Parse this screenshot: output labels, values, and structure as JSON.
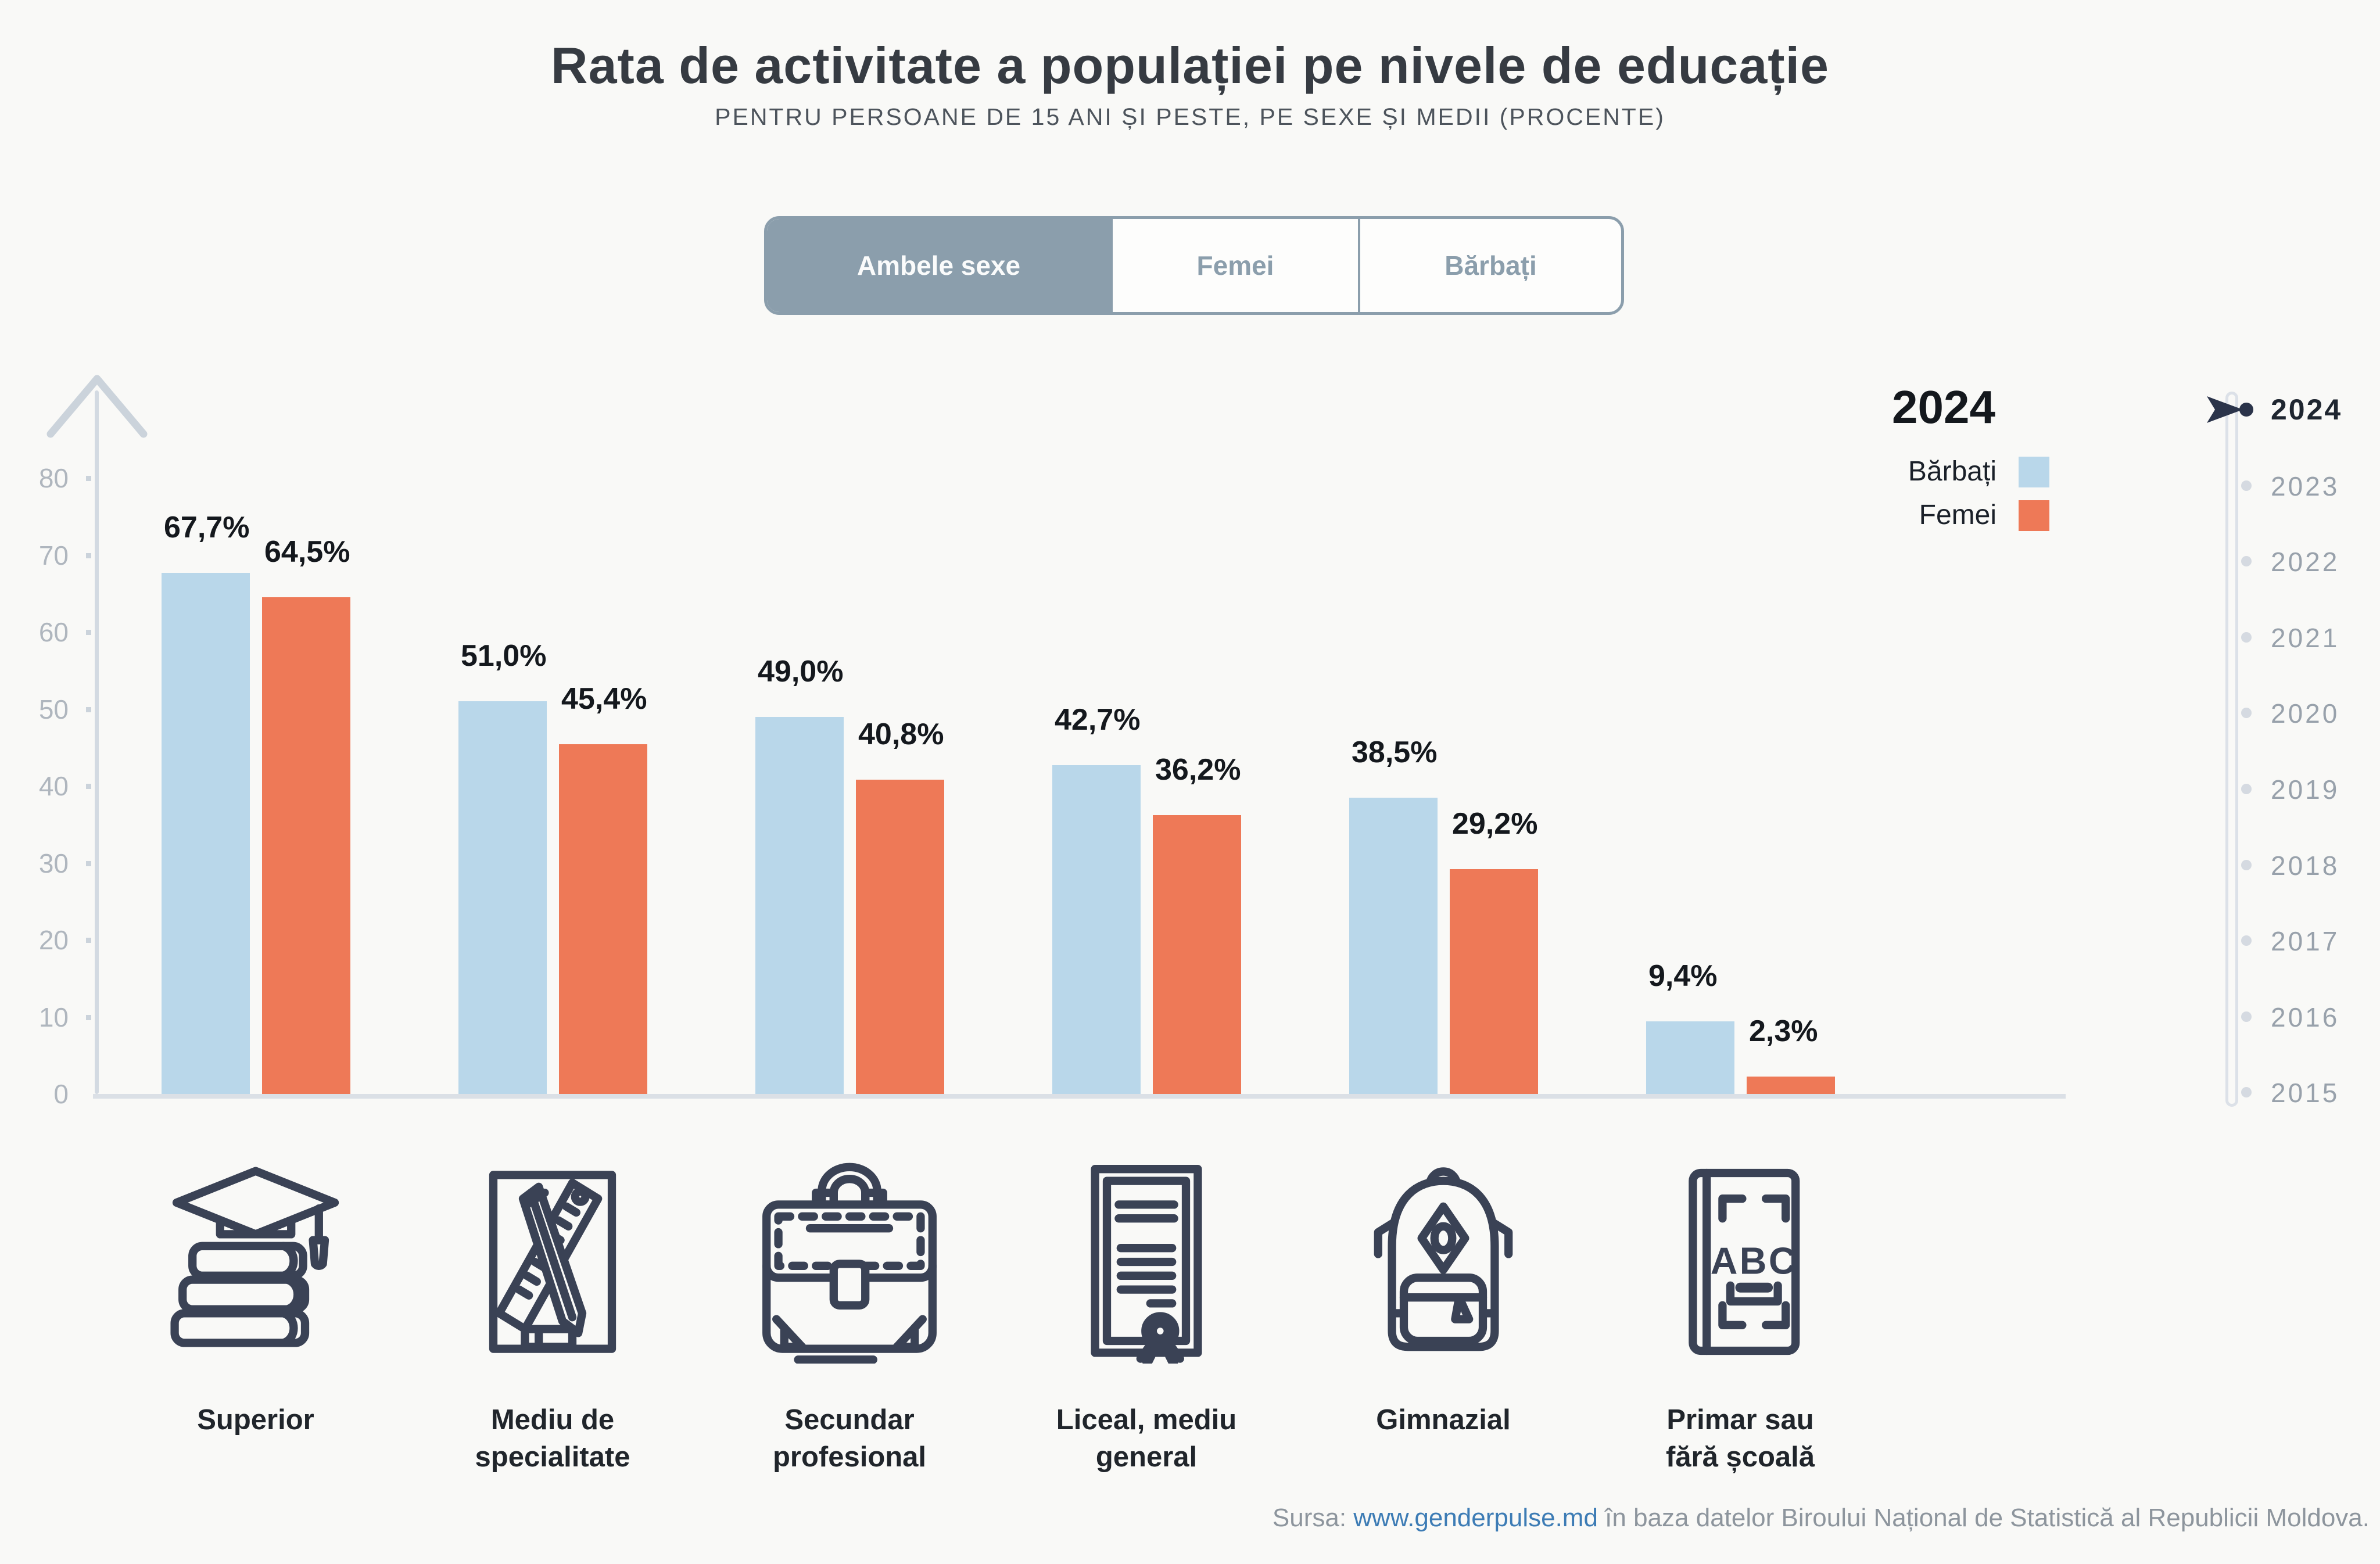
{
  "colors": {
    "background": "#F9F9F7",
    "bar_male": "#B9D7EA",
    "bar_female": "#EE7957",
    "tab_selected": "#8B9EAC",
    "icon_stroke": "#3A4255",
    "axis": "#D3DAE2",
    "timeline_active": "#2B344A",
    "link": "#3D7CB5"
  },
  "header": {
    "title": "Rata de activitate a populației pe nivele de educație",
    "subtitle": "PENTRU PERSOANE DE 15 ANI ȘI PESTE, PE SEXE ȘI MEDII (PROCENTE)"
  },
  "tabs": {
    "options": [
      {
        "label": "Ambele sexe",
        "selected": true
      },
      {
        "label": "Femei",
        "selected": false
      },
      {
        "label": "Bărbați",
        "selected": false
      }
    ]
  },
  "legend": {
    "year": "2024",
    "items": [
      {
        "label": "Bărbați",
        "color": "#B9D7EA"
      },
      {
        "label": "Femei",
        "color": "#EE7957"
      }
    ]
  },
  "timeline": {
    "active_year": "2024",
    "years": [
      "2024",
      "2023",
      "2022",
      "2021",
      "2020",
      "2019",
      "2018",
      "2017",
      "2016",
      "2015"
    ]
  },
  "chart_data": {
    "type": "bar",
    "title": "Rata de activitate a populației pe nivele de educație",
    "subtitle": "Pentru persoane de 15 ani și peste, pe sexe și medii (procente)",
    "unit": "%",
    "year": "2024",
    "categories": [
      "Superior",
      "Mediu de specialitate",
      "Secundar profesional",
      "Liceal, mediu general",
      "Gimnazial",
      "Primar sau fără școală"
    ],
    "category_lines": [
      "Superior",
      "Mediu de\nspecialitate",
      "Secundar\nprofesional",
      "Liceal, mediu\ngeneral",
      "Gimnazial",
      "Primar sau\nfără școală"
    ],
    "category_icons": [
      "books-graduation-icon",
      "ruler-pencil-icon",
      "briefcase-icon",
      "diploma-icon",
      "backpack-icon",
      "abc-book-icon"
    ],
    "series": [
      {
        "name": "Bărbați",
        "color": "#B9D7EA",
        "values": [
          67.7,
          51.0,
          49.0,
          42.7,
          38.5,
          9.4
        ],
        "labels": [
          "67,7%",
          "51,0%",
          "49,0%",
          "42,7%",
          "38,5%",
          "9,4%"
        ]
      },
      {
        "name": "Femei",
        "color": "#EE7957",
        "values": [
          64.5,
          45.4,
          40.8,
          36.2,
          29.2,
          2.3
        ],
        "labels": [
          "64,5%",
          "45,4%",
          "40,8%",
          "36,2%",
          "29,2%",
          "2,3%"
        ]
      }
    ],
    "y_axis": {
      "ticks": [
        0,
        10,
        20,
        30,
        40,
        50,
        60,
        70,
        80
      ],
      "min": 0,
      "max": 85
    },
    "grid": false,
    "legend_position": "top-right"
  },
  "footer": {
    "prefix": "Sursa: ",
    "link": "www.genderpulse.md",
    "suffix": " în baza datelor Biroului Național de Statistică al Republicii Moldova."
  }
}
